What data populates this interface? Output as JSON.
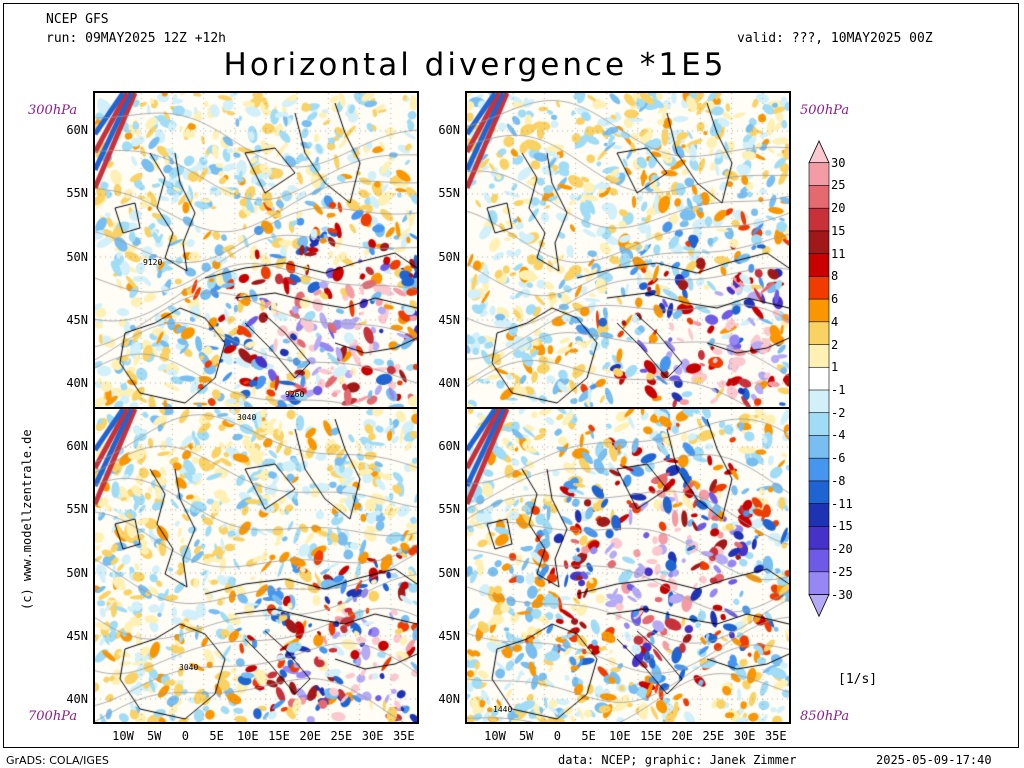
{
  "header": {
    "model": "NCEP GFS",
    "run": "run: 09MAY2025 12Z +12h",
    "valid": "valid: ???, 10MAY2025 00Z",
    "title": "Horizontal divergence *1E5"
  },
  "panels": [
    {
      "name": "panel-300hpa",
      "level": "300hPa",
      "contour_labels": [
        "9120",
        "9260"
      ]
    },
    {
      "name": "panel-500hpa",
      "level": "500hPa",
      "contour_labels": []
    },
    {
      "name": "panel-700hpa",
      "level": "700hPa",
      "contour_labels": [
        "3040",
        "3040"
      ]
    },
    {
      "name": "panel-850hpa",
      "level": "850hPa",
      "contour_labels": [
        "1440"
      ]
    }
  ],
  "lat_labels": [
    "60N",
    "55N",
    "50N",
    "45N",
    "40N"
  ],
  "lon_labels": [
    "10W",
    "5W",
    "0",
    "5E",
    "10E",
    "15E",
    "20E",
    "25E",
    "30E",
    "35E"
  ],
  "colorbar": {
    "levels": [
      "30",
      "25",
      "20",
      "15",
      "11",
      "8",
      "6",
      "4",
      "2",
      "1",
      "-1",
      "-2",
      "-4",
      "-6",
      "-8",
      "-11",
      "-15",
      "-20",
      "-25",
      "-30"
    ],
    "colors": [
      "#fbc8cf",
      "#f49ca4",
      "#e46a70",
      "#c8303a",
      "#a01818",
      "#c80000",
      "#f03c00",
      "#fa9600",
      "#fad264",
      "#fff0b4",
      "#ffffff",
      "#d2f0fa",
      "#a0dcf5",
      "#78bef0",
      "#4696f0",
      "#1e64d2",
      "#1e32b4",
      "#4632c8",
      "#6e5ae6",
      "#9687f5",
      "#b4aaf5"
    ],
    "unit": "[1/s]"
  },
  "footer": {
    "left": "GrADS: COLA/IGES",
    "credits": "data: NCEP; graphic: Janek Zimmer",
    "timestamp": "2025-05-09-17:40",
    "copyright": "(c) www.modellzentrale.de"
  }
}
